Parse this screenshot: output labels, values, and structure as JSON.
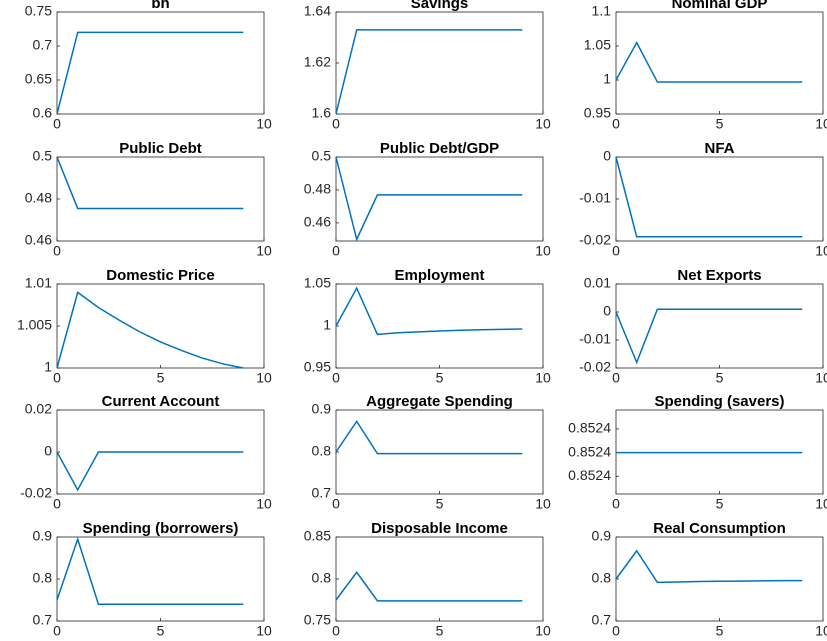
{
  "chart_data": [
    {
      "type": "line",
      "title": "bh",
      "x": [
        0,
        1,
        2,
        3,
        4,
        5,
        6,
        7,
        8,
        9
      ],
      "values": [
        0.6,
        0.72,
        0.72,
        0.72,
        0.72,
        0.72,
        0.72,
        0.72,
        0.72,
        0.72
      ],
      "xlim": [
        0,
        10
      ],
      "xticks": [
        0,
        10
      ],
      "ylim": [
        0.6,
        0.75
      ],
      "yticks": [
        0.6,
        0.65,
        0.7,
        0.75
      ],
      "color": "#0072bd"
    },
    {
      "type": "line",
      "title": "Savings",
      "x": [
        0,
        1,
        2,
        3,
        4,
        5,
        6,
        7,
        8,
        9
      ],
      "values": [
        1.6,
        1.633,
        1.633,
        1.633,
        1.633,
        1.633,
        1.633,
        1.633,
        1.633,
        1.633
      ],
      "xlim": [
        0,
        10
      ],
      "xticks": [
        0,
        10
      ],
      "ylim": [
        1.6,
        1.64
      ],
      "yticks": [
        1.6,
        1.62,
        1.64
      ],
      "color": "#0072bd"
    },
    {
      "type": "line",
      "title": "Nominal GDP",
      "x": [
        0,
        1,
        2,
        3,
        4,
        5,
        6,
        7,
        8,
        9
      ],
      "values": [
        1.0,
        1.055,
        0.997,
        0.997,
        0.997,
        0.997,
        0.997,
        0.997,
        0.997,
        0.997
      ],
      "xlim": [
        0,
        10
      ],
      "xticks": [
        0,
        5,
        10
      ],
      "ylim": [
        0.95,
        1.1
      ],
      "yticks": [
        0.95,
        1,
        1.05,
        1.1
      ],
      "color": "#0072bd"
    },
    {
      "type": "line",
      "title": "Public Debt",
      "x": [
        0,
        1,
        2,
        3,
        4,
        5,
        6,
        7,
        8,
        9
      ],
      "values": [
        0.5,
        0.4755,
        0.4755,
        0.4755,
        0.4755,
        0.4755,
        0.4755,
        0.4755,
        0.4755,
        0.4755
      ],
      "xlim": [
        0,
        10
      ],
      "xticks": [
        0,
        10
      ],
      "ylim": [
        0.46,
        0.5
      ],
      "yticks": [
        0.46,
        0.48,
        0.5
      ],
      "color": "#0072bd"
    },
    {
      "type": "line",
      "title": "Public Debt/GDP",
      "x": [
        0,
        1,
        2,
        3,
        4,
        5,
        6,
        7,
        8,
        9
      ],
      "values": [
        0.5,
        0.45,
        0.477,
        0.477,
        0.477,
        0.477,
        0.477,
        0.477,
        0.477,
        0.477
      ],
      "xlim": [
        0,
        10
      ],
      "xticks": [
        0,
        10
      ],
      "ylim": [
        0.449,
        0.5
      ],
      "yticks": [
        0.46,
        0.48,
        0.5
      ],
      "color": "#0072bd"
    },
    {
      "type": "line",
      "title": "NFA",
      "x": [
        0,
        1,
        2,
        3,
        4,
        5,
        6,
        7,
        8,
        9
      ],
      "values": [
        0,
        -0.019,
        -0.019,
        -0.019,
        -0.019,
        -0.019,
        -0.019,
        -0.019,
        -0.019,
        -0.019
      ],
      "xlim": [
        0,
        10
      ],
      "xticks": [
        0,
        10
      ],
      "ylim": [
        -0.02,
        0
      ],
      "yticks": [
        -0.02,
        -0.01,
        0
      ],
      "color": "#0072bd"
    },
    {
      "type": "line",
      "title": "Domestic Price",
      "x": [
        0,
        1,
        2,
        3,
        4,
        5,
        6,
        7,
        8,
        9
      ],
      "values": [
        1.0,
        1.009,
        1.0072,
        1.0057,
        1.0043,
        1.0031,
        1.0021,
        1.0012,
        1.0005,
        1.0
      ],
      "xlim": [
        0,
        10
      ],
      "xticks": [
        0,
        5,
        10
      ],
      "ylim": [
        1,
        1.01
      ],
      "yticks": [
        1,
        1.005,
        1.01
      ],
      "color": "#0072bd"
    },
    {
      "type": "line",
      "title": "Employment",
      "x": [
        0,
        1,
        2,
        3,
        4,
        5,
        6,
        7,
        8,
        9
      ],
      "values": [
        1.0,
        1.045,
        0.99,
        0.992,
        0.993,
        0.994,
        0.995,
        0.9955,
        0.996,
        0.9965
      ],
      "xlim": [
        0,
        10
      ],
      "xticks": [
        0,
        5,
        10
      ],
      "ylim": [
        0.95,
        1.05
      ],
      "yticks": [
        0.95,
        1,
        1.05
      ],
      "color": "#0072bd"
    },
    {
      "type": "line",
      "title": "Net Exports",
      "x": [
        0,
        1,
        2,
        3,
        4,
        5,
        6,
        7,
        8,
        9
      ],
      "values": [
        0,
        -0.018,
        0.001,
        0.001,
        0.001,
        0.001,
        0.001,
        0.001,
        0.001,
        0.001
      ],
      "xlim": [
        0,
        10
      ],
      "xticks": [
        0,
        5,
        10
      ],
      "ylim": [
        -0.02,
        0.01
      ],
      "yticks": [
        -0.02,
        -0.01,
        0,
        0.01
      ],
      "color": "#0072bd"
    },
    {
      "type": "line",
      "title": "Current Account",
      "x": [
        0,
        1,
        2,
        3,
        4,
        5,
        6,
        7,
        8,
        9
      ],
      "values": [
        0,
        -0.018,
        0,
        0,
        0,
        0,
        0,
        0,
        0,
        0
      ],
      "xlim": [
        0,
        10
      ],
      "xticks": [
        0,
        10
      ],
      "ylim": [
        -0.02,
        0.02
      ],
      "yticks": [
        -0.02,
        0,
        0.02
      ],
      "color": "#0072bd"
    },
    {
      "type": "line",
      "title": "Aggregate Spending",
      "x": [
        0,
        1,
        2,
        3,
        4,
        5,
        6,
        7,
        8,
        9
      ],
      "values": [
        0.8,
        0.873,
        0.796,
        0.796,
        0.796,
        0.796,
        0.796,
        0.796,
        0.796,
        0.796
      ],
      "xlim": [
        0,
        10
      ],
      "xticks": [
        0,
        5,
        10
      ],
      "ylim": [
        0.7,
        0.9
      ],
      "yticks": [
        0.7,
        0.8,
        0.9
      ],
      "color": "#0072bd"
    },
    {
      "type": "line",
      "title": "Spending (savers)",
      "x": [
        0,
        1,
        2,
        3,
        4,
        5,
        6,
        7,
        8,
        9
      ],
      "values": [
        0.8524,
        0.8524,
        0.8524,
        0.8524,
        0.8524,
        0.8524,
        0.8524,
        0.8524,
        0.8524,
        0.8524
      ],
      "xlim": [
        0,
        10
      ],
      "xticks": [
        0,
        5,
        10
      ],
      "ylim": [
        0.852365,
        0.852436
      ],
      "yticks": [
        {
          "value": 0.85238,
          "label": "0.8524"
        },
        {
          "value": 0.8524,
          "label": "0.8524"
        },
        {
          "value": 0.85242,
          "label": "0.8524"
        }
      ],
      "color": "#0072bd"
    },
    {
      "type": "line",
      "title": "Spending (borrowers)",
      "x": [
        0,
        1,
        2,
        3,
        4,
        5,
        6,
        7,
        8,
        9
      ],
      "values": [
        0.75,
        0.895,
        0.74,
        0.74,
        0.74,
        0.74,
        0.74,
        0.74,
        0.74,
        0.74
      ],
      "xlim": [
        0,
        10
      ],
      "xticks": [
        0,
        5,
        10
      ],
      "ylim": [
        0.7,
        0.9
      ],
      "yticks": [
        0.7,
        0.8,
        0.9
      ],
      "color": "#0072bd"
    },
    {
      "type": "line",
      "title": "Disposable Income",
      "x": [
        0,
        1,
        2,
        3,
        4,
        5,
        6,
        7,
        8,
        9
      ],
      "values": [
        0.775,
        0.808,
        0.774,
        0.774,
        0.774,
        0.774,
        0.774,
        0.774,
        0.774,
        0.774
      ],
      "xlim": [
        0,
        10
      ],
      "xticks": [
        0,
        5,
        10
      ],
      "ylim": [
        0.75,
        0.85
      ],
      "yticks": [
        0.75,
        0.8,
        0.85
      ],
      "color": "#0072bd"
    },
    {
      "type": "line",
      "title": "Real Consumption",
      "x": [
        0,
        1,
        2,
        3,
        4,
        5,
        6,
        7,
        8,
        9
      ],
      "values": [
        0.8,
        0.867,
        0.792,
        0.793,
        0.794,
        0.7945,
        0.795,
        0.7955,
        0.796,
        0.796
      ],
      "xlim": [
        0,
        10
      ],
      "xticks": [
        0,
        5,
        10
      ],
      "ylim": [
        0.7,
        0.9
      ],
      "yticks": [
        0.7,
        0.8,
        0.9
      ],
      "color": "#0072bd"
    }
  ]
}
